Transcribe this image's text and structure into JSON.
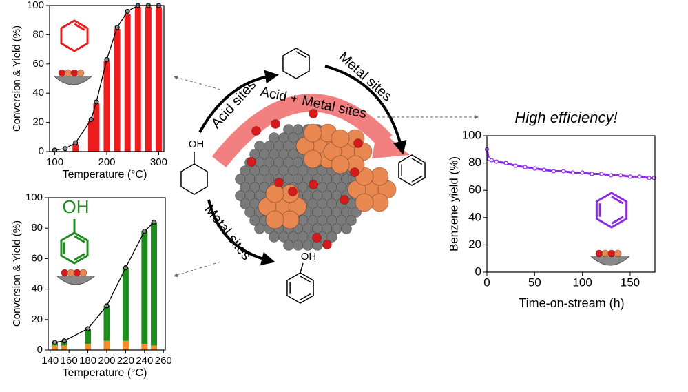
{
  "chart_data": [
    {
      "type": "bar",
      "y_label": "Conversion & Yield (%)",
      "x_label": "Temperature (°C)",
      "x": [
        100,
        120,
        140,
        170,
        180,
        200,
        220,
        240,
        260,
        280,
        300
      ],
      "series": [
        {
          "type": "bar",
          "color": "#ee1c1c",
          "values": [
            null,
            null,
            5,
            21,
            33,
            62,
            84,
            94,
            99,
            99,
            99
          ]
        },
        {
          "type": "line",
          "color": "#000000",
          "values": [
            1,
            2,
            6,
            22,
            34,
            63,
            85,
            96,
            100,
            100,
            100
          ]
        }
      ],
      "xlim": [
        90,
        310
      ],
      "xticks": [
        100,
        200,
        300
      ],
      "ylim": [
        0,
        100
      ],
      "yticks": [
        0,
        20,
        40,
        60,
        80,
        100
      ]
    },
    {
      "type": "bar",
      "stacked": true,
      "y_label": "Conversion & Yield (%)",
      "x_label": "Temperature (°C)",
      "x": [
        145,
        155,
        180,
        200,
        220,
        240,
        250
      ],
      "series": [
        {
          "type": "bar",
          "color": "#f28c28",
          "values": [
            3,
            3,
            4,
            6,
            6,
            4,
            3
          ]
        },
        {
          "type": "bar",
          "color": "#1e8c1e",
          "values": [
            2,
            3,
            10,
            23,
            48,
            74,
            81
          ]
        },
        {
          "type": "line",
          "color": "#000000",
          "values": [
            5,
            6,
            14,
            29,
            54,
            78,
            84
          ]
        }
      ],
      "xlim": [
        138,
        262
      ],
      "xticks": [
        140,
        160,
        180,
        200,
        220,
        240,
        260
      ],
      "ylim": [
        0,
        100
      ],
      "yticks": [
        0,
        20,
        40,
        60,
        80,
        100
      ]
    },
    {
      "type": "line",
      "y_label": "Benzene yield (%)",
      "x_label": "Time-on-stream (h)",
      "x": [
        0,
        2,
        5,
        10,
        20,
        30,
        40,
        50,
        60,
        70,
        80,
        90,
        100,
        110,
        120,
        130,
        140,
        150,
        160,
        170,
        175
      ],
      "series": [
        {
          "type": "line",
          "color": "#8a2be2",
          "values": [
            90,
            83,
            82,
            81,
            80,
            78,
            77,
            76,
            75,
            74,
            74,
            73,
            73,
            72,
            72,
            71,
            71,
            70,
            70,
            69,
            69
          ]
        }
      ],
      "xlim": [
        0,
        176
      ],
      "xticks": [
        0,
        50,
        100,
        150
      ],
      "ylim": [
        0,
        100
      ],
      "yticks": [
        0,
        20,
        40,
        60,
        80,
        100
      ]
    }
  ],
  "diagram": {
    "acid_label": "Acid sites",
    "metal_top_label": "Metal sites",
    "both_label": "Acid + Metal sites",
    "metal_bottom_label": "Metal sites",
    "efficiency": "High efficiency!",
    "hydroxyl_reactant": "OH",
    "hydroxyl_product": "OH",
    "hydroxyl_inset": "OH"
  }
}
